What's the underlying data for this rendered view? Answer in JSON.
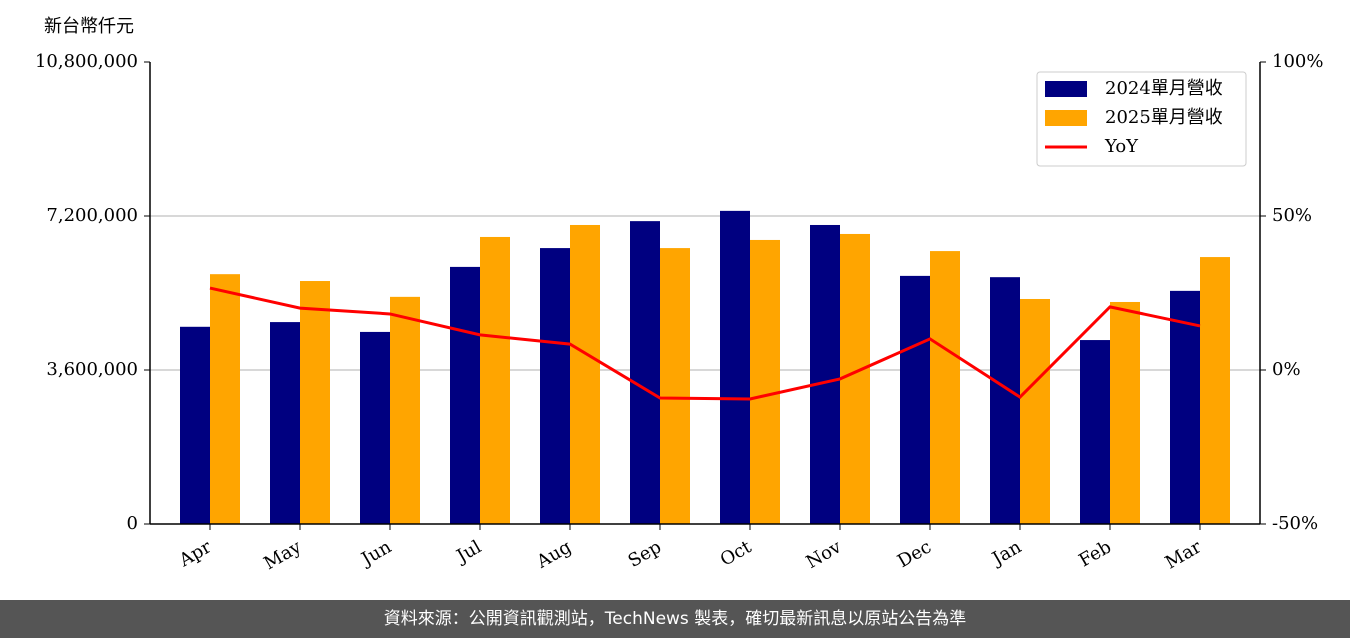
{
  "chart_data": {
    "type": "bar-line",
    "y_label": "新台幣仟元",
    "categories": [
      "Apr",
      "May",
      "Jun",
      "Jul",
      "Aug",
      "Sep",
      "Oct",
      "Nov",
      "Dec",
      "Jan",
      "Feb",
      "Mar"
    ],
    "series": [
      {
        "name": "2024單月營收",
        "color": "#000080",
        "type": "bar",
        "values": [
          4610000,
          4720000,
          4490000,
          6010000,
          6450000,
          7080000,
          7320000,
          6990000,
          5800000,
          5770000,
          4300000,
          5450000
        ]
      },
      {
        "name": "2025單月營收",
        "color": "#ffa500",
        "type": "bar",
        "values": [
          5840000,
          5680000,
          5310000,
          6710000,
          6990000,
          6450000,
          6640000,
          6780000,
          6380000,
          5260000,
          5190000,
          6240000
        ]
      },
      {
        "name": "YoY",
        "color": "#ff0000",
        "type": "line",
        "axis": "y2",
        "values": [
          26.6,
          20.1,
          18.2,
          11.4,
          8.4,
          -9.1,
          -9.4,
          -2.9,
          10.1,
          -8.8,
          20.5,
          14.3
        ]
      }
    ],
    "ylim": [
      0,
      10800000
    ],
    "yticks": [
      0,
      {
        "value": 3600000,
        "label": "3,600,000"
      },
      {
        "value": 7200000,
        "label": "7,200,000"
      },
      {
        "value": 10800000,
        "label": "10,800,000"
      }
    ],
    "y2lim": [
      -50,
      100
    ],
    "y2ticks": [
      {
        "value": -50,
        "label": "-50%"
      },
      {
        "value": 0,
        "label": "0%"
      },
      {
        "value": 50,
        "label": "50%"
      },
      {
        "value": 100,
        "label": "100%"
      }
    ],
    "grid": true,
    "legend": "upper right"
  },
  "source": "資料來源：公開資訊觀測站，TechNews 製表，確切最新訊息以原站公告為準"
}
